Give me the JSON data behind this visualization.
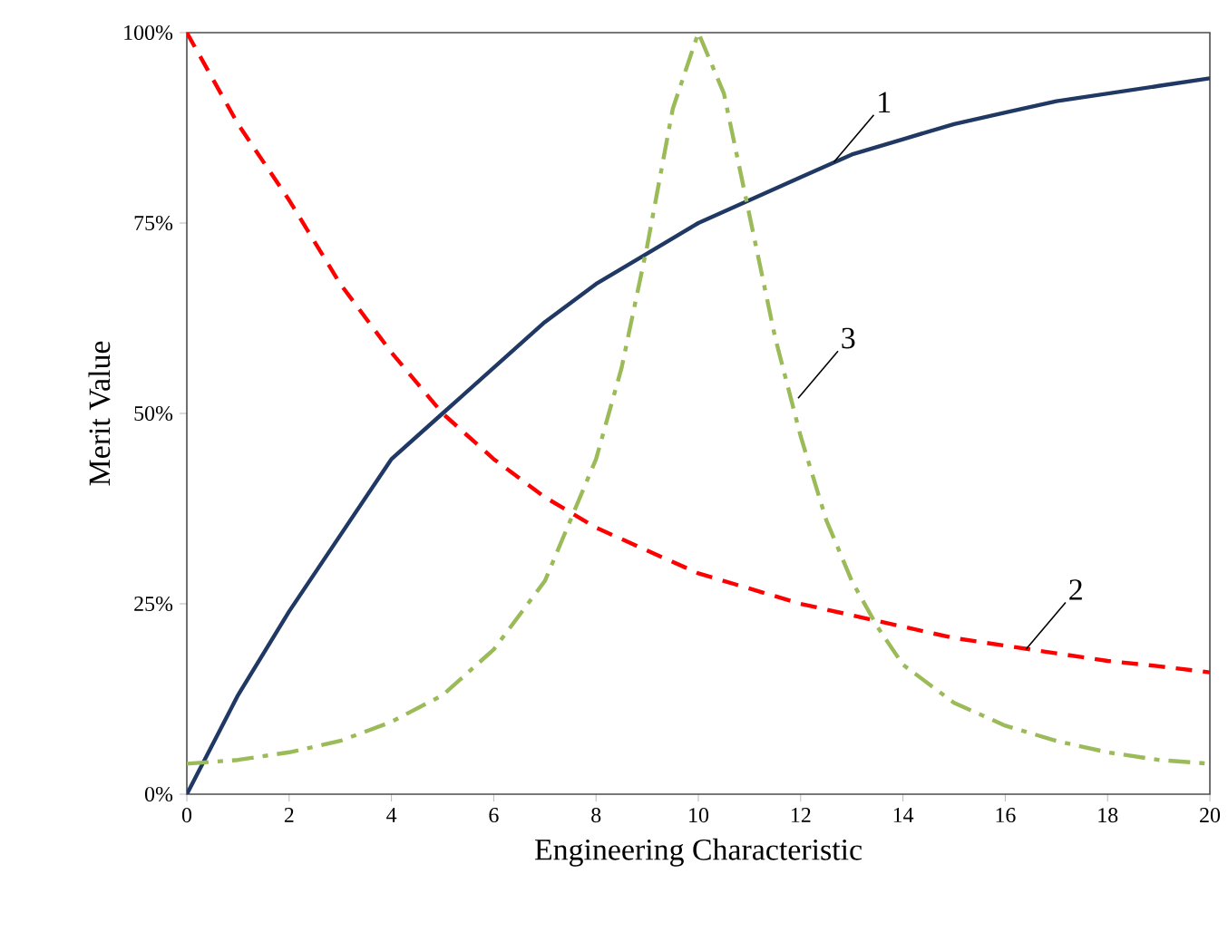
{
  "chart_data": {
    "type": "line",
    "xlabel": "Engineering Characteristic",
    "ylabel": "Merit Value",
    "xlim": [
      0,
      20
    ],
    "xticks": [
      0,
      2,
      4,
      6,
      8,
      10,
      12,
      14,
      16,
      18,
      20
    ],
    "ylim": [
      0,
      100
    ],
    "yticks": [
      {
        "value": 0,
        "label": "0%"
      },
      {
        "value": 25,
        "label": "25%"
      },
      {
        "value": 50,
        "label": "50%"
      },
      {
        "value": 75,
        "label": "75%"
      },
      {
        "value": 100,
        "label": "100%"
      }
    ],
    "grid": false,
    "marker": "none",
    "series": [
      {
        "color": "#203864",
        "line_style": "solid",
        "x": [
          0,
          1,
          2,
          3,
          4,
          5,
          6,
          7,
          8,
          9,
          10,
          11,
          12,
          13,
          14,
          15,
          16,
          17,
          18,
          19,
          20
        ],
        "values": [
          0,
          13,
          24,
          34,
          44,
          50,
          56,
          62,
          67,
          71,
          75,
          78,
          81,
          84,
          86,
          88,
          89.5,
          91,
          92,
          93,
          94
        ]
      },
      {
        "color": "#ff0000",
        "line_style": "dashed",
        "x": [
          0,
          1,
          2,
          3,
          4,
          5,
          6,
          7,
          8,
          9,
          10,
          11,
          12,
          13,
          14,
          15,
          16,
          17,
          18,
          19,
          20
        ],
        "values": [
          100,
          88,
          78,
          67,
          58,
          50,
          44,
          39,
          35,
          32,
          29,
          27,
          25,
          23.5,
          22,
          20.5,
          19.5,
          18.5,
          17.5,
          16.8,
          16
        ]
      },
      {
        "color": "#9bbb59",
        "line_style": "dashdot",
        "x": [
          0,
          1,
          2,
          3,
          4,
          5,
          6,
          7,
          7.5,
          8,
          8.5,
          9,
          9.5,
          10,
          10.5,
          11,
          11.5,
          12,
          12.5,
          13,
          13.5,
          14,
          15,
          16,
          17,
          18,
          19,
          20
        ],
        "values": [
          4,
          4.5,
          5.5,
          7,
          9.5,
          13,
          19,
          28,
          36,
          44,
          56,
          72,
          90,
          100,
          92,
          76,
          60,
          47,
          36,
          28,
          22,
          17,
          12,
          9,
          7,
          5.5,
          4.5,
          4
        ]
      }
    ],
    "annotations": [
      {
        "text": "1",
        "x": 12.65,
        "y": 83
      },
      {
        "text": "2",
        "x": 16.4,
        "y": 19
      },
      {
        "text": "3",
        "x": 11.95,
        "y": 52
      }
    ]
  }
}
